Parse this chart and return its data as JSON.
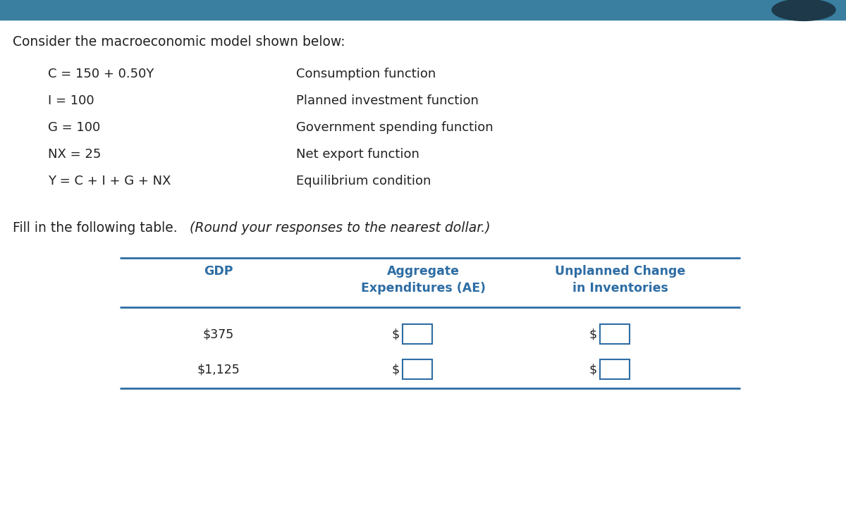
{
  "background_color": "#ffffff",
  "header_bar_color": "#3a7fa0",
  "header_bar_dark": "#1e3a4a",
  "intro_text": "Consider the macroeconomic model shown below:",
  "equations": [
    [
      "C = 150 + 0.50Y",
      "Consumption function"
    ],
    [
      "I = 100",
      "Planned investment function"
    ],
    [
      "G = 100",
      "Government spending function"
    ],
    [
      "NX = 25",
      "Net export function"
    ],
    [
      "Y = C + I + G + NX",
      "Equilibrium condition"
    ]
  ],
  "fill_text": "Fill in the following table.",
  "italic_text": " (Round your responses to the nearest dollar.)",
  "table_header_color": "#2e6da4",
  "table_line_color": "#2e6da4",
  "col1_header": "GDP",
  "col2_header": "Aggregate\nExpenditures (AE)",
  "col3_header": "Unplanned Change\nin Inventories",
  "gdp_values": [
    "$375",
    "$1,125"
  ],
  "input_prefix": "$",
  "equation_text_color": "#222222",
  "figsize": [
    12.0,
    7.45
  ],
  "dpi": 100
}
